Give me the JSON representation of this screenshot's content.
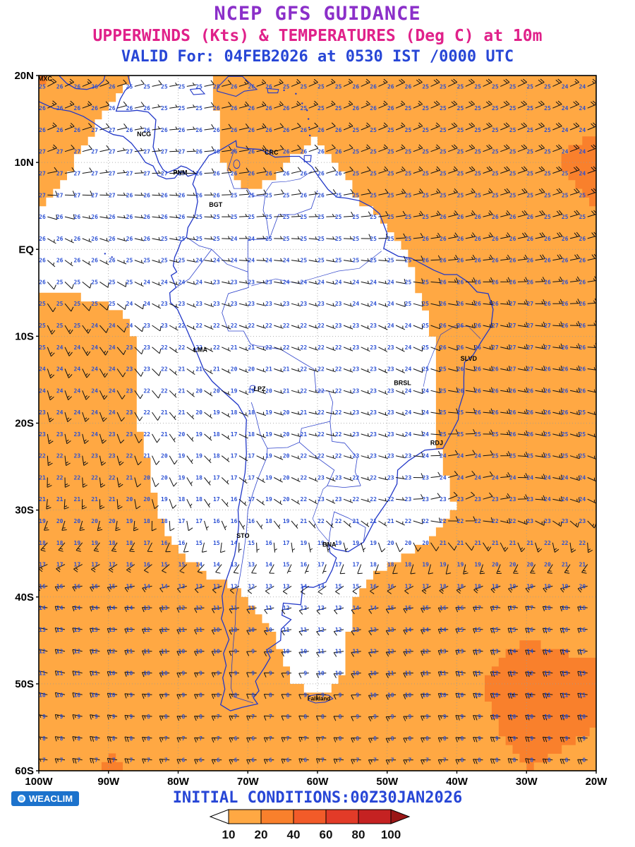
{
  "header": {
    "title1": "NCEP GFS GUIDANCE",
    "title2": "UPPERWINDS (Kts) & TEMPERATURES (Deg C) at 10m",
    "title3": "VALID For: 04FEB2026 at 0530 IST /0000 UTC",
    "colors": {
      "title1": "#8b2fc9",
      "title2": "#e0218a",
      "title3": "#2746d6"
    }
  },
  "footer": {
    "initial_conditions": "INITIAL CONDITIONS:00Z30JAN2026",
    "color": "#2746d6",
    "logo_text": "WEACLIM",
    "logo_bg": "#1c72cc"
  },
  "map": {
    "lat_ticks": [
      {
        "label": "20N",
        "lat": 20
      },
      {
        "label": "10N",
        "lat": 10
      },
      {
        "label": "EQ",
        "lat": 0
      },
      {
        "label": "10S",
        "lat": -10
      },
      {
        "label": "20S",
        "lat": -20
      },
      {
        "label": "30S",
        "lat": -30
      },
      {
        "label": "40S",
        "lat": -40
      },
      {
        "label": "50S",
        "lat": -50
      },
      {
        "label": "60S",
        "lat": -60
      }
    ],
    "lon_ticks": [
      {
        "label": "100W",
        "lon": -100
      },
      {
        "label": "90W",
        "lon": -90
      },
      {
        "label": "80W",
        "lon": -80
      },
      {
        "label": "70W",
        "lon": -70
      },
      {
        "label": "60W",
        "lon": -60
      },
      {
        "label": "50W",
        "lon": -50
      },
      {
        "label": "40W",
        "lon": -40
      },
      {
        "label": "30W",
        "lon": -30
      },
      {
        "label": "20W",
        "lon": -20
      }
    ],
    "cities": [
      {
        "label": "MXC",
        "lon": -99.1,
        "lat": 19.4
      },
      {
        "label": "NCG",
        "lon": -84.9,
        "lat": 13.0
      },
      {
        "label": "CRC",
        "lon": -66.6,
        "lat": 10.9
      },
      {
        "label": "PNM",
        "lon": -79.7,
        "lat": 8.6
      },
      {
        "label": "BGT",
        "lon": -74.6,
        "lat": 4.9
      },
      {
        "label": "LMA",
        "lon": -76.8,
        "lat": -11.8
      },
      {
        "label": "LPZ",
        "lon": -68.3,
        "lat": -16.3
      },
      {
        "label": "BRSL",
        "lon": -47.8,
        "lat": -15.6
      },
      {
        "label": "SLVD",
        "lon": -38.3,
        "lat": -12.8
      },
      {
        "label": "RDJ",
        "lon": -42.9,
        "lat": -22.5
      },
      {
        "label": "STO",
        "lon": -70.7,
        "lat": -33.2
      },
      {
        "label": "BNA",
        "lon": -58.3,
        "lat": -34.2
      },
      {
        "label": "Falkland",
        "lon": -59.8,
        "lat": -51.9
      }
    ],
    "field": {
      "note": "coarse 10-degree analysis grid read from the chart; rows are lats 20N..60S, cols lons 100W..20W",
      "lons": [
        -100,
        -90,
        -80,
        -70,
        -60,
        -50,
        -40,
        -30,
        -20
      ],
      "lats": [
        20,
        10,
        0,
        -10,
        -20,
        -30,
        -40,
        -50,
        -60
      ],
      "temps_c": [
        [
          25,
          26,
          24,
          26,
          25,
          26,
          25,
          25,
          24
        ],
        [
          27,
          27,
          27,
          26,
          26,
          25,
          25,
          25,
          24
        ],
        [
          26,
          26,
          25,
          24,
          25,
          25,
          26,
          26,
          26
        ],
        [
          25,
          24,
          22,
          22,
          22,
          23,
          26,
          27,
          26
        ],
        [
          23,
          24,
          21,
          17,
          22,
          23,
          25,
          26,
          25
        ],
        [
          20,
          21,
          18,
          16,
          23,
          22,
          23,
          23,
          24
        ],
        [
          15,
          15,
          13,
          11,
          13,
          15,
          17,
          18,
          19
        ],
        [
          10,
          10,
          9,
          8,
          9,
          10,
          10,
          11,
          12
        ],
        [
          7,
          7,
          6,
          5,
          6,
          7,
          7,
          8,
          8
        ]
      ],
      "wind_speed_kt": [
        [
          21,
          12,
          6,
          14,
          15,
          18,
          18,
          18,
          16
        ],
        [
          14,
          6,
          5,
          13,
          8,
          15,
          18,
          18,
          22
        ],
        [
          6,
          5,
          4,
          4,
          5,
          8,
          15,
          18,
          18
        ],
        [
          15,
          13,
          5,
          4,
          5,
          6,
          12,
          16,
          15
        ],
        [
          16,
          13,
          6,
          5,
          5,
          6,
          12,
          14,
          15
        ],
        [
          14,
          15,
          8,
          5,
          5,
          6,
          10,
          14,
          16
        ],
        [
          13,
          15,
          12,
          10,
          8,
          12,
          14,
          16,
          14
        ],
        [
          14,
          16,
          14,
          12,
          9,
          12,
          18,
          24,
          22
        ],
        [
          15,
          21,
          16,
          14,
          15,
          14,
          16,
          20,
          18
        ]
      ],
      "wind_dir_from_deg": [
        [
          60,
          70,
          80,
          70,
          65,
          65,
          65,
          65,
          65
        ],
        [
          70,
          80,
          90,
          80,
          70,
          70,
          70,
          70,
          70
        ],
        [
          130,
          110,
          100,
          90,
          100,
          90,
          80,
          80,
          75
        ],
        [
          160,
          140,
          120,
          110,
          110,
          120,
          110,
          100,
          90
        ],
        [
          170,
          160,
          140,
          110,
          100,
          110,
          90,
          100,
          110
        ],
        [
          190,
          180,
          160,
          130,
          120,
          100,
          60,
          90,
          120
        ],
        [
          280,
          275,
          270,
          260,
          250,
          260,
          270,
          280,
          275
        ],
        [
          285,
          280,
          270,
          275,
          270,
          265,
          280,
          275,
          280
        ],
        [
          275,
          280,
          275,
          270,
          280,
          270,
          270,
          280,
          270
        ]
      ]
    },
    "temp_text_color": "#2b50d4",
    "coast_color": "#2238c8",
    "barb_color": "#111111"
  },
  "legend": {
    "values": [
      "10",
      "20",
      "40",
      "60",
      "80",
      "100"
    ],
    "colors": [
      "#ffa843",
      "#f9802c",
      "#f25b29",
      "#e23b28",
      "#c52222"
    ],
    "arrow_left_color": "#ffffff",
    "arrow_right_color": "#9a1616"
  }
}
